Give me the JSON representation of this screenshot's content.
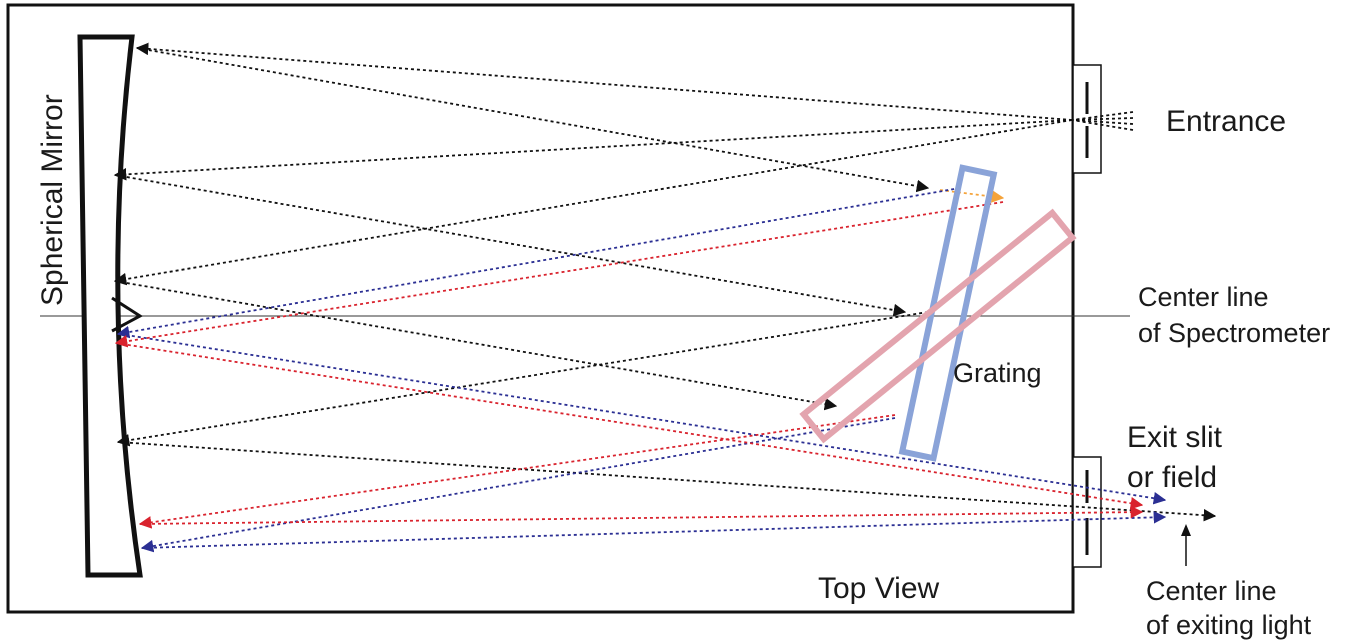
{
  "labels": {
    "mirror": "Spherical Mirror",
    "entrance": "Entrance",
    "center_line_1": "Center line",
    "center_line_2": "of Spectrometer",
    "grating": "Grating",
    "exit_1": "Exit slit",
    "exit_2": "or field",
    "top_view": "Top View",
    "exiting_1": "Center line",
    "exiting_2": "of exiting light"
  },
  "colors": {
    "outline": "#111111",
    "ray_black": "#111111",
    "ray_blue": "#2b2f93",
    "ray_red": "#d9232e",
    "ray_orange": "#f5a33a",
    "grating_blue": "#8aa3d8",
    "grating_pink": "#e3a4ae"
  }
}
